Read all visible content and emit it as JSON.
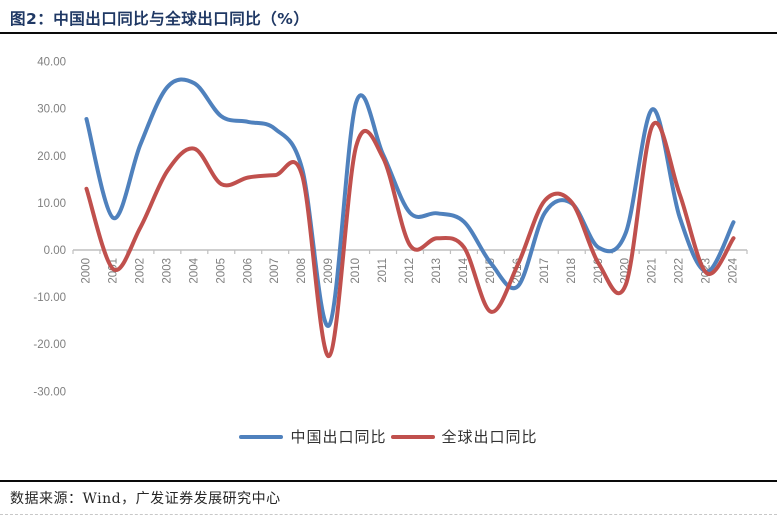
{
  "header": {
    "title": "图2：中国出口同比与全球出口同比（%）"
  },
  "footer": {
    "source": "数据来源：Wind，广发证券发展研究中心"
  },
  "colors": {
    "china_line": "#4F81BD",
    "global_line": "#C0504D",
    "title_text": "#1F3864",
    "axis_text": "#808080",
    "axis_line": "#BFBFBF"
  },
  "legend": [
    {
      "label": "中国出口同比",
      "color": "#4F81BD"
    },
    {
      "label": "全球出口同比",
      "color": "#C0504D"
    }
  ],
  "chart_data": {
    "type": "line",
    "smooth": true,
    "x": [
      2000,
      2001,
      2002,
      2003,
      2004,
      2005,
      2006,
      2007,
      2008,
      2009,
      2010,
      2011,
      2012,
      2013,
      2014,
      2015,
      2016,
      2017,
      2018,
      2019,
      2020,
      2021,
      2022,
      2023,
      2024
    ],
    "series": [
      {
        "name": "中国出口同比",
        "color": "#4F81BD",
        "values": [
          27.8,
          6.8,
          22.4,
          34.6,
          35.4,
          28.4,
          27.2,
          25.7,
          17.2,
          -16.0,
          31.3,
          20.3,
          7.9,
          7.8,
          6.0,
          -2.8,
          -7.7,
          7.9,
          9.9,
          0.5,
          3.6,
          29.9,
          7.0,
          -4.6,
          5.9
        ]
      },
      {
        "name": "全球出口同比",
        "color": "#C0504D",
        "values": [
          13.0,
          -4.1,
          4.8,
          16.8,
          21.5,
          14.0,
          15.4,
          15.9,
          15.8,
          -22.5,
          22.0,
          19.6,
          1.0,
          2.5,
          0.6,
          -13.1,
          -3.1,
          10.5,
          10.1,
          -2.9,
          -7.4,
          26.5,
          11.9,
          -4.9,
          2.5
        ]
      }
    ],
    "title": "图2：中国出口同比与全球出口同比（%）",
    "xlabel": "",
    "ylabel": "",
    "ylim": [
      -30,
      40
    ],
    "yticks": [
      40,
      30,
      20,
      10,
      0,
      -10,
      -20,
      -30
    ],
    "ytick_decimals": 2,
    "grid": false,
    "legend_position": "bottom",
    "x_axis_at_zero": true,
    "x_label_rotation": -90
  }
}
